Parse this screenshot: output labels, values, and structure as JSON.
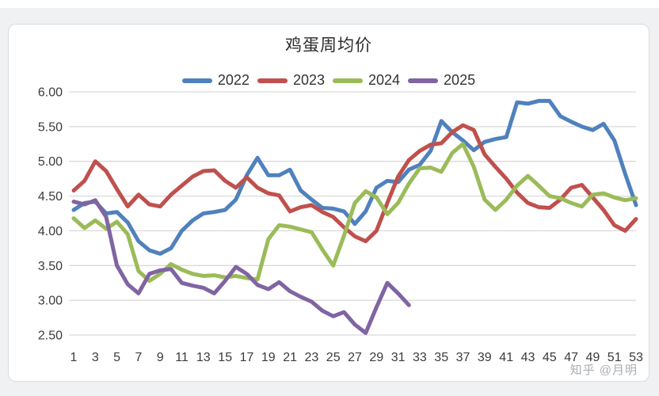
{
  "page": {
    "watermark": "知乎 @月明"
  },
  "chart_data": {
    "type": "line",
    "title": "鸡蛋周均价",
    "xlabel": "",
    "ylabel": "",
    "x_unit": "week",
    "x": [
      1,
      2,
      3,
      4,
      5,
      6,
      7,
      8,
      9,
      10,
      11,
      12,
      13,
      14,
      15,
      16,
      17,
      18,
      19,
      20,
      21,
      22,
      23,
      24,
      25,
      26,
      27,
      28,
      29,
      30,
      31,
      32,
      33,
      34,
      35,
      36,
      37,
      38,
      39,
      40,
      41,
      42,
      43,
      44,
      45,
      46,
      47,
      48,
      49,
      50,
      51,
      52,
      53
    ],
    "x_tick_labels": [
      "1",
      "3",
      "5",
      "7",
      "9",
      "11",
      "13",
      "15",
      "17",
      "19",
      "21",
      "23",
      "25",
      "27",
      "29",
      "31",
      "33",
      "35",
      "37",
      "39",
      "41",
      "43",
      "45",
      "47",
      "49",
      "51",
      "53"
    ],
    "y_tick_labels": [
      "6.00",
      "5.50",
      "5.00",
      "4.50",
      "4.00",
      "3.50",
      "3.00",
      "2.50"
    ],
    "ylim": [
      2.5,
      6.0
    ],
    "grid": true,
    "legend_position": "top",
    "gridline_color": "#d9d9d9",
    "axis_text_color": "#3b3b3b",
    "series": [
      {
        "name": "2022",
        "color": "#4f81bd",
        "values": [
          4.3,
          4.4,
          4.42,
          4.25,
          4.27,
          4.12,
          3.85,
          3.72,
          3.67,
          3.75,
          4.0,
          4.15,
          4.25,
          4.27,
          4.3,
          4.45,
          4.8,
          5.05,
          4.8,
          4.8,
          4.88,
          4.58,
          4.45,
          4.33,
          4.32,
          4.28,
          4.1,
          4.28,
          4.62,
          4.72,
          4.7,
          4.88,
          4.95,
          5.15,
          5.58,
          5.42,
          5.3,
          5.16,
          5.28,
          5.32,
          5.35,
          5.85,
          5.83,
          5.87,
          5.87,
          5.65,
          5.57,
          5.5,
          5.45,
          5.54,
          5.3,
          4.82,
          4.37
        ]
      },
      {
        "name": "2023",
        "color": "#c0504d",
        "values": [
          4.58,
          4.72,
          5.0,
          4.86,
          4.6,
          4.35,
          4.52,
          4.38,
          4.35,
          4.52,
          4.65,
          4.78,
          4.86,
          4.87,
          4.72,
          4.62,
          4.77,
          4.62,
          4.54,
          4.51,
          4.28,
          4.34,
          4.37,
          4.27,
          4.2,
          4.05,
          3.92,
          3.85,
          4.0,
          4.4,
          4.78,
          5.02,
          5.15,
          5.24,
          5.26,
          5.42,
          5.52,
          5.45,
          5.1,
          4.92,
          4.75,
          4.55,
          4.4,
          4.34,
          4.33,
          4.45,
          4.62,
          4.66,
          4.48,
          4.3,
          4.08,
          4.0,
          4.17
        ]
      },
      {
        "name": "2024",
        "color": "#9bbb59",
        "values": [
          4.18,
          4.04,
          4.15,
          4.03,
          4.13,
          3.95,
          3.42,
          3.28,
          3.38,
          3.52,
          3.44,
          3.38,
          3.35,
          3.36,
          3.33,
          3.35,
          3.32,
          3.3,
          3.88,
          4.08,
          4.06,
          4.02,
          3.98,
          3.73,
          3.5,
          3.93,
          4.4,
          4.57,
          4.48,
          4.24,
          4.4,
          4.68,
          4.9,
          4.91,
          4.85,
          5.12,
          5.25,
          4.92,
          4.45,
          4.3,
          4.45,
          4.65,
          4.79,
          4.65,
          4.5,
          4.47,
          4.4,
          4.35,
          4.52,
          4.54,
          4.48,
          4.44,
          4.47
        ]
      },
      {
        "name": "2025",
        "color": "#8064a2",
        "values": [
          4.42,
          4.38,
          4.44,
          4.2,
          3.5,
          3.23,
          3.1,
          3.38,
          3.43,
          3.45,
          3.25,
          3.21,
          3.18,
          3.1,
          3.28,
          3.48,
          3.38,
          3.22,
          3.16,
          3.26,
          3.13,
          3.05,
          2.98,
          2.85,
          2.77,
          2.83,
          2.65,
          2.53,
          2.9,
          3.25,
          3.1,
          2.93
        ]
      }
    ]
  }
}
